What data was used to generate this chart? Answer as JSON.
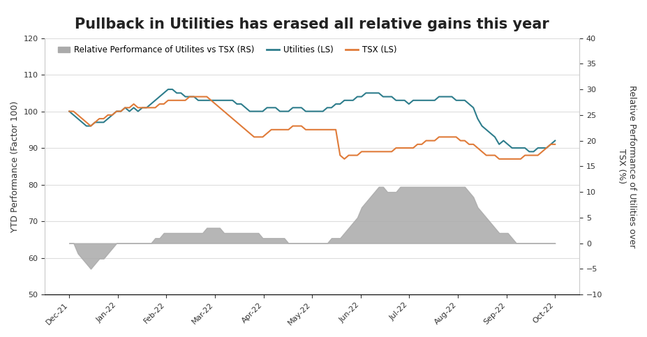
{
  "title": "Pullback in Utilities has erased all relative gains this year",
  "title_fontsize": 15,
  "left_ylabel": "YTD Performance (Factor 100)",
  "right_ylabel": "Relative Performance of Utilities over\nTSX (%)",
  "ylim_left": [
    50,
    120
  ],
  "ylim_right": [
    -10,
    40
  ],
  "yticks_left": [
    50,
    60,
    70,
    80,
    90,
    100,
    110,
    120
  ],
  "yticks_right": [
    -10,
    -5,
    0,
    5,
    10,
    15,
    20,
    25,
    30,
    35,
    40
  ],
  "xtick_labels": [
    "Dec-21",
    "Jan-22",
    "Feb-22",
    "Mar-22",
    "Apr-22",
    "May-22",
    "Jun-22",
    "Jul-22",
    "Aug-22",
    "Sep-22",
    "Oct-22"
  ],
  "utilities_color": "#2e7d8c",
  "tsx_color": "#e07b39",
  "relative_color": "#aaaaaa",
  "background_color": "#ffffff",
  "grid_color": "#dddddd",
  "utilities_line": {
    "values": [
      100,
      99,
      98,
      97,
      96,
      96,
      97,
      97,
      97,
      98,
      99,
      100,
      100,
      101,
      100,
      101,
      100,
      101,
      101,
      102,
      103,
      104,
      105,
      106,
      106,
      105,
      105,
      104,
      104,
      104,
      103,
      103,
      103,
      103,
      103,
      103,
      103,
      103,
      103,
      102,
      102,
      101,
      100,
      100,
      100,
      100,
      101,
      101,
      101,
      100,
      100,
      100,
      101,
      101,
      101,
      100,
      100,
      100,
      100,
      100,
      101,
      101,
      102,
      102,
      103,
      103,
      103,
      104,
      104,
      105,
      105,
      105,
      105,
      104,
      104,
      104,
      103,
      103,
      103,
      102,
      103,
      103,
      103,
      103,
      103,
      103,
      104,
      104,
      104,
      104,
      103,
      103,
      103,
      102,
      101,
      98,
      96,
      95,
      94,
      93,
      91,
      92,
      91,
      90,
      90,
      90,
      90,
      89,
      89,
      90,
      90,
      90,
      91,
      92
    ]
  },
  "tsx_line": {
    "values": [
      100,
      100,
      99,
      98,
      97,
      96,
      97,
      98,
      98,
      99,
      99,
      100,
      100,
      101,
      101,
      102,
      101,
      101,
      101,
      101,
      101,
      102,
      102,
      103,
      103,
      103,
      103,
      103,
      104,
      104,
      104,
      104,
      104,
      103,
      102,
      101,
      100,
      99,
      98,
      97,
      96,
      95,
      94,
      93,
      93,
      93,
      94,
      95,
      95,
      95,
      95,
      95,
      96,
      96,
      96,
      95,
      95,
      95,
      95,
      95,
      95,
      95,
      95,
      88,
      87,
      88,
      88,
      88,
      89,
      89,
      89,
      89,
      89,
      89,
      89,
      89,
      90,
      90,
      90,
      90,
      90,
      91,
      91,
      92,
      92,
      92,
      93,
      93,
      93,
      93,
      93,
      92,
      92,
      91,
      91,
      90,
      89,
      88,
      88,
      88,
      87,
      87,
      87,
      87,
      87,
      87,
      88,
      88,
      88,
      88,
      89,
      90,
      91,
      91
    ]
  },
  "relative_area": {
    "values": [
      0,
      0,
      -2,
      -3,
      -4,
      -5,
      -4,
      -3,
      -3,
      -2,
      -1,
      0,
      0,
      0,
      0,
      0,
      0,
      0,
      0,
      0,
      1,
      1,
      2,
      2,
      2,
      2,
      2,
      2,
      2,
      2,
      2,
      2,
      3,
      3,
      3,
      3,
      2,
      2,
      2,
      2,
      2,
      2,
      2,
      2,
      2,
      1,
      1,
      1,
      1,
      1,
      1,
      0,
      0,
      0,
      0,
      0,
      0,
      0,
      0,
      0,
      0,
      1,
      1,
      1,
      2,
      3,
      4,
      5,
      7,
      8,
      9,
      10,
      11,
      11,
      10,
      10,
      10,
      11,
      11,
      11,
      11,
      11,
      11,
      11,
      11,
      11,
      11,
      11,
      11,
      11,
      11,
      11,
      11,
      10,
      9,
      7,
      6,
      5,
      4,
      3,
      2,
      2,
      2,
      1,
      0,
      0,
      0,
      0,
      0,
      0,
      0,
      0,
      0,
      0
    ]
  },
  "n_points": 114
}
